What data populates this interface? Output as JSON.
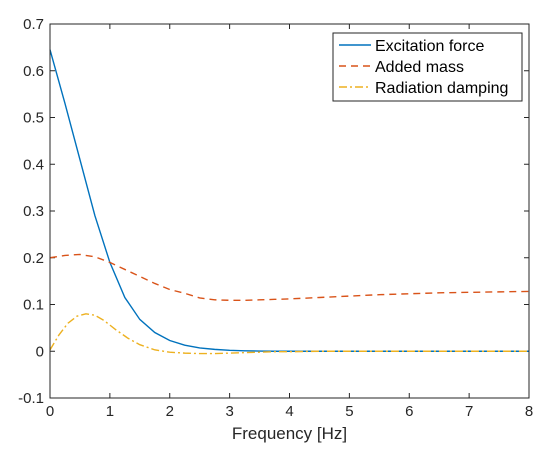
{
  "chart_data": {
    "type": "line",
    "title": "",
    "xlabel": "Frequency [Hz]",
    "ylabel": "",
    "xlim": [
      0,
      8
    ],
    "ylim": [
      -0.1,
      0.7
    ],
    "x_ticks": [
      "0",
      "1",
      "2",
      "3",
      "4",
      "5",
      "6",
      "7",
      "8"
    ],
    "y_ticks": [
      "-0.1",
      "0",
      "0.1",
      "0.2",
      "0.3",
      "0.4",
      "0.5",
      "0.6",
      "0.7"
    ],
    "grid": false,
    "legend_position": "top-right",
    "series": [
      {
        "name": "Excitation force",
        "color": "#0072BD",
        "style": "solid",
        "x": [
          0,
          0.25,
          0.5,
          0.75,
          1.0,
          1.25,
          1.5,
          1.75,
          2.0,
          2.25,
          2.5,
          2.75,
          3.0,
          3.25,
          3.5,
          3.75,
          4.0,
          4.5,
          5.0,
          5.5,
          6.0,
          6.5,
          7.0,
          7.5,
          8.0
        ],
        "y": [
          0.645,
          0.53,
          0.41,
          0.29,
          0.19,
          0.115,
          0.068,
          0.04,
          0.023,
          0.013,
          0.007,
          0.004,
          0.002,
          0.001,
          0.0005,
          0.0,
          0.0,
          0.0,
          0.0,
          0.0,
          0.0,
          0.0,
          0.0,
          0.0,
          0.0
        ]
      },
      {
        "name": "Added mass",
        "color": "#D95319",
        "style": "dashed",
        "x": [
          0,
          0.25,
          0.5,
          0.75,
          1.0,
          1.25,
          1.5,
          1.75,
          2.0,
          2.25,
          2.5,
          2.75,
          3.0,
          3.25,
          3.5,
          3.75,
          4.0,
          4.5,
          5.0,
          5.5,
          6.0,
          6.5,
          7.0,
          7.5,
          8.0
        ],
        "y": [
          0.2,
          0.205,
          0.207,
          0.202,
          0.19,
          0.175,
          0.16,
          0.145,
          0.132,
          0.124,
          0.114,
          0.11,
          0.109,
          0.109,
          0.11,
          0.111,
          0.112,
          0.115,
          0.118,
          0.121,
          0.123,
          0.125,
          0.126,
          0.127,
          0.128
        ]
      },
      {
        "name": "Radiation damping",
        "color": "#EDB120",
        "style": "dashdot",
        "x": [
          0,
          0.15,
          0.3,
          0.45,
          0.6,
          0.75,
          0.9,
          1.1,
          1.3,
          1.5,
          1.75,
          2.0,
          2.25,
          2.5,
          2.75,
          3.0,
          3.25,
          3.5,
          3.75,
          4.0,
          4.5,
          5.0,
          5.5,
          6.0,
          6.5,
          7.0,
          7.5,
          8.0
        ],
        "y": [
          0.003,
          0.035,
          0.06,
          0.075,
          0.08,
          0.077,
          0.066,
          0.046,
          0.028,
          0.014,
          0.003,
          -0.002,
          -0.004,
          -0.005,
          -0.005,
          -0.004,
          -0.003,
          -0.002,
          -0.001,
          -0.001,
          0.0,
          0.0,
          0.0,
          0.0,
          0.0,
          0.0,
          0.0,
          0.0
        ]
      }
    ]
  }
}
